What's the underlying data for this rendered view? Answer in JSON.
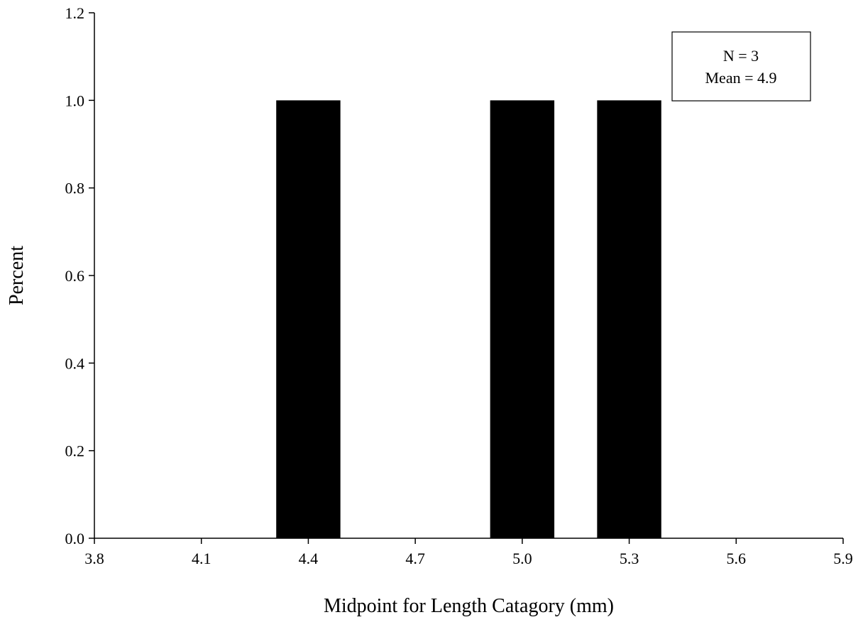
{
  "chart_data": {
    "type": "bar",
    "title": "",
    "xlabel": "Midpoint for Length Catagory (mm)",
    "ylabel": "Percent",
    "xlim": [
      3.8,
      5.9
    ],
    "ylim": [
      0.0,
      1.2
    ],
    "x_ticks": [
      "3.8",
      "4.1",
      "4.4",
      "4.7",
      "5.0",
      "5.3",
      "5.6",
      "5.9"
    ],
    "y_ticks": [
      "0.0",
      "0.2",
      "0.4",
      "0.6",
      "0.8",
      "1.0",
      "1.2"
    ],
    "bar_width": 0.18,
    "bars": [
      {
        "x": 4.4,
        "value": 1.0
      },
      {
        "x": 5.0,
        "value": 1.0
      },
      {
        "x": 5.3,
        "value": 1.0
      }
    ],
    "bar_color": "#000000",
    "grid": false,
    "annotation": {
      "lines": [
        "N = 3",
        "Mean = 4.9"
      ],
      "placement": "top-right"
    }
  }
}
